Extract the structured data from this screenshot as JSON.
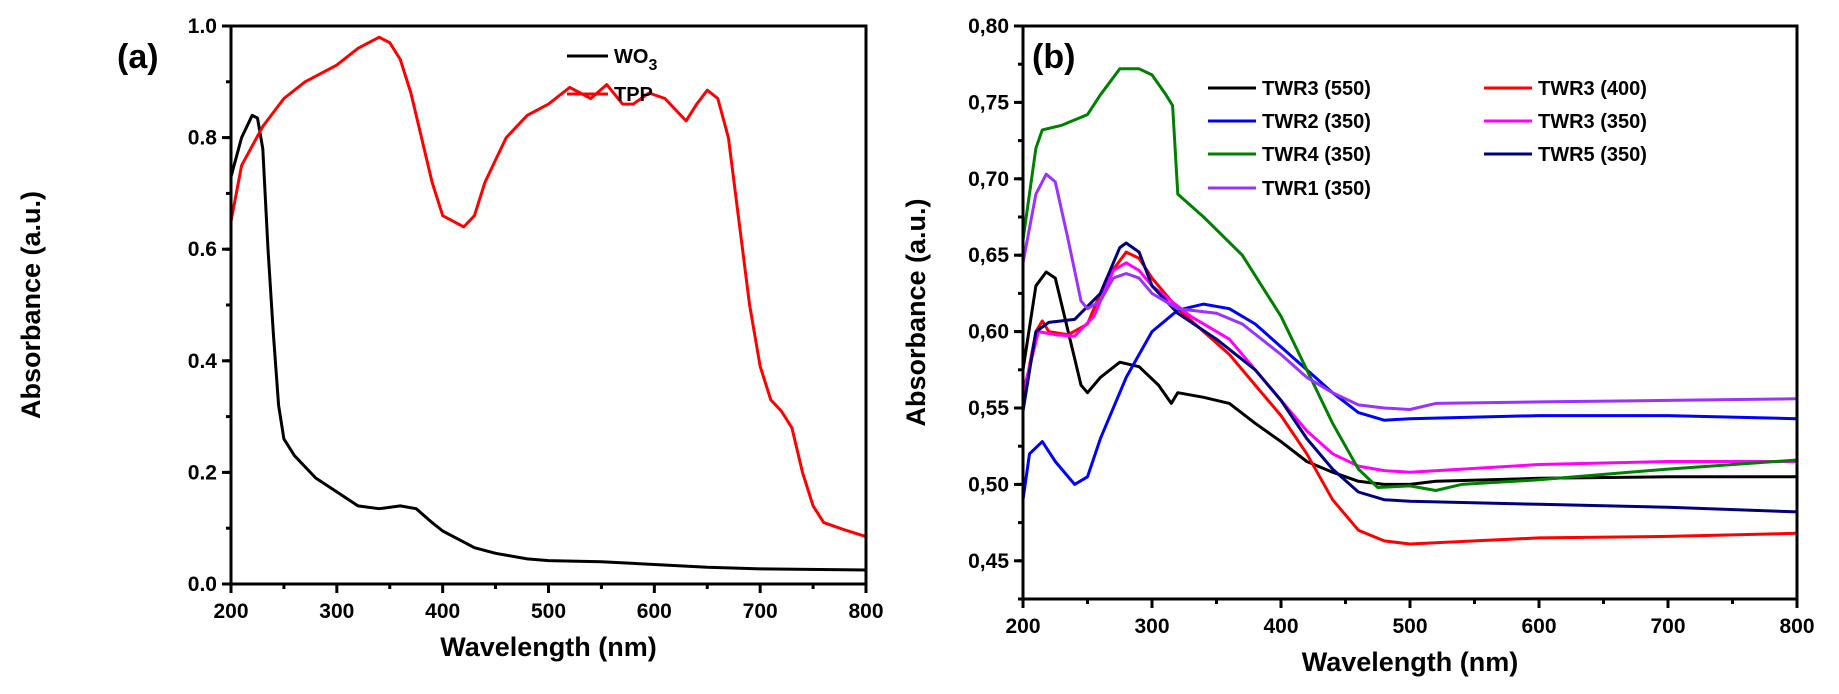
{
  "chart_data": [
    {
      "type": "line",
      "panel_label": "(a)",
      "xlabel": "Wavelength (nm)",
      "ylabel": "Absorbance (a.u.)",
      "xlim": [
        200,
        800
      ],
      "ylim": [
        0,
        1.0
      ],
      "x_ticks": [
        200,
        300,
        400,
        500,
        600,
        700,
        800
      ],
      "x_tick_labels": [
        "200",
        "300",
        "400",
        "500",
        "600",
        "700",
        "800"
      ],
      "y_ticks": [
        0,
        0.2,
        0.4,
        0.6,
        0.8,
        1.0
      ],
      "y_tick_labels": [
        "0.0",
        "0.2",
        "0.4",
        "0.6",
        "0.8",
        "1.0"
      ],
      "grid": false,
      "legend_placement": "top-right",
      "series": [
        {
          "name": "WO3",
          "name_main": "WO",
          "name_sub": "3",
          "color": "#000000",
          "x": [
            200,
            210,
            220,
            225,
            230,
            235,
            240,
            245,
            250,
            260,
            280,
            300,
            320,
            340,
            360,
            375,
            390,
            400,
            410,
            420,
            430,
            450,
            480,
            500,
            550,
            600,
            650,
            700,
            800
          ],
          "y": [
            0.73,
            0.8,
            0.84,
            0.835,
            0.78,
            0.6,
            0.45,
            0.32,
            0.26,
            0.23,
            0.19,
            0.165,
            0.14,
            0.135,
            0.14,
            0.135,
            0.11,
            0.095,
            0.085,
            0.075,
            0.065,
            0.055,
            0.045,
            0.042,
            0.04,
            0.035,
            0.03,
            0.027,
            0.025
          ]
        },
        {
          "name": "TPP",
          "color": "#ff0000",
          "x": [
            200,
            210,
            230,
            250,
            270,
            300,
            320,
            340,
            350,
            360,
            370,
            380,
            390,
            400,
            410,
            420,
            430,
            440,
            460,
            480,
            500,
            520,
            540,
            555,
            570,
            580,
            595,
            610,
            630,
            640,
            650,
            660,
            670,
            680,
            690,
            700,
            710,
            720,
            730,
            740,
            750,
            760,
            780,
            800
          ],
          "y": [
            0.65,
            0.75,
            0.82,
            0.87,
            0.9,
            0.93,
            0.96,
            0.98,
            0.97,
            0.94,
            0.88,
            0.8,
            0.72,
            0.66,
            0.65,
            0.64,
            0.66,
            0.72,
            0.8,
            0.84,
            0.86,
            0.89,
            0.87,
            0.895,
            0.86,
            0.86,
            0.88,
            0.87,
            0.83,
            0.86,
            0.885,
            0.87,
            0.8,
            0.65,
            0.5,
            0.39,
            0.33,
            0.31,
            0.28,
            0.2,
            0.14,
            0.11,
            0.097,
            0.085
          ]
        }
      ]
    },
    {
      "type": "line",
      "panel_label": "(b)",
      "xlabel": "Wavelength (nm)",
      "ylabel": "Absorbance (a.u.)",
      "xlim": [
        200,
        800
      ],
      "ylim": [
        0.425,
        0.8
      ],
      "x_ticks": [
        200,
        300,
        400,
        500,
        600,
        700,
        800
      ],
      "x_tick_labels": [
        "200",
        "300",
        "400",
        "500",
        "600",
        "700",
        "800"
      ],
      "y_ticks": [
        0.45,
        0.5,
        0.55,
        0.6,
        0.65,
        0.7,
        0.75,
        0.8
      ],
      "y_tick_labels": [
        "0,45",
        "0,50",
        "0,55",
        "0,60",
        "0,65",
        "0,70",
        "0,75",
        "0,80"
      ],
      "grid": false,
      "legend_placement": "top-right",
      "series": [
        {
          "name": "TWR3 (550)",
          "color": "#000000",
          "x": [
            200,
            210,
            218,
            225,
            235,
            245,
            250,
            260,
            275,
            290,
            305,
            315,
            320,
            340,
            360,
            380,
            400,
            420,
            440,
            460,
            480,
            500,
            520,
            600,
            700,
            800
          ],
          "y": [
            0.575,
            0.63,
            0.639,
            0.635,
            0.6,
            0.565,
            0.56,
            0.57,
            0.58,
            0.577,
            0.565,
            0.553,
            0.56,
            0.557,
            0.553,
            0.54,
            0.528,
            0.515,
            0.508,
            0.502,
            0.5,
            0.5,
            0.502,
            0.504,
            0.505,
            0.505
          ]
        },
        {
          "name": "TWR3 (400)",
          "color": "#ff0000",
          "x": [
            200,
            210,
            215,
            220,
            235,
            250,
            265,
            280,
            290,
            300,
            320,
            340,
            360,
            380,
            400,
            420,
            440,
            460,
            480,
            500,
            550,
            600,
            700,
            800
          ],
          "y": [
            0.555,
            0.6,
            0.607,
            0.6,
            0.598,
            0.605,
            0.635,
            0.652,
            0.648,
            0.635,
            0.615,
            0.6,
            0.585,
            0.565,
            0.545,
            0.52,
            0.49,
            0.47,
            0.463,
            0.461,
            0.463,
            0.465,
            0.466,
            0.468
          ]
        },
        {
          "name": "TWR2 (350)",
          "color": "#0000ff",
          "x": [
            200,
            205,
            215,
            225,
            240,
            250,
            260,
            280,
            300,
            320,
            340,
            360,
            380,
            400,
            420,
            440,
            460,
            480,
            500,
            600,
            700,
            800
          ],
          "y": [
            0.49,
            0.52,
            0.528,
            0.515,
            0.5,
            0.505,
            0.53,
            0.57,
            0.6,
            0.614,
            0.618,
            0.615,
            0.605,
            0.59,
            0.575,
            0.56,
            0.547,
            0.542,
            0.543,
            0.545,
            0.545,
            0.543
          ]
        },
        {
          "name": "TWR3 (350)",
          "color": "#ff00ff",
          "x": [
            200,
            212,
            225,
            240,
            255,
            270,
            280,
            290,
            300,
            330,
            360,
            380,
            400,
            420,
            440,
            460,
            480,
            500,
            600,
            700,
            800
          ],
          "y": [
            0.56,
            0.6,
            0.598,
            0.597,
            0.61,
            0.64,
            0.645,
            0.64,
            0.63,
            0.61,
            0.595,
            0.575,
            0.555,
            0.535,
            0.52,
            0.512,
            0.509,
            0.508,
            0.513,
            0.515,
            0.515
          ]
        },
        {
          "name": "TWR4 (350)",
          "color": "#008000",
          "x": [
            200,
            210,
            215,
            230,
            250,
            260,
            275,
            290,
            300,
            310,
            316,
            320,
            340,
            370,
            400,
            420,
            440,
            460,
            475,
            500,
            520,
            540,
            600,
            700,
            800
          ],
          "y": [
            0.66,
            0.72,
            0.732,
            0.735,
            0.742,
            0.755,
            0.772,
            0.772,
            0.768,
            0.756,
            0.748,
            0.69,
            0.675,
            0.65,
            0.61,
            0.575,
            0.54,
            0.51,
            0.498,
            0.499,
            0.496,
            0.5,
            0.503,
            0.51,
            0.516
          ]
        },
        {
          "name": "TWR5 (350)",
          "color": "#000080",
          "x": [
            200,
            210,
            220,
            240,
            260,
            275,
            280,
            290,
            300,
            320,
            350,
            380,
            400,
            420,
            440,
            460,
            480,
            500,
            600,
            700,
            800
          ],
          "y": [
            0.548,
            0.6,
            0.606,
            0.608,
            0.625,
            0.655,
            0.658,
            0.652,
            0.63,
            0.612,
            0.595,
            0.575,
            0.555,
            0.53,
            0.51,
            0.495,
            0.49,
            0.489,
            0.487,
            0.485,
            0.482
          ]
        },
        {
          "name": "TWR1 (350)",
          "color": "#9933ff",
          "x": [
            200,
            210,
            218,
            225,
            235,
            245,
            250,
            260,
            270,
            280,
            290,
            300,
            320,
            350,
            370,
            400,
            420,
            440,
            460,
            480,
            500,
            520,
            600,
            700,
            800
          ],
          "y": [
            0.645,
            0.69,
            0.703,
            0.698,
            0.66,
            0.62,
            0.615,
            0.62,
            0.635,
            0.638,
            0.635,
            0.625,
            0.615,
            0.612,
            0.605,
            0.585,
            0.57,
            0.56,
            0.552,
            0.55,
            0.549,
            0.553,
            0.554,
            0.555,
            0.556
          ]
        }
      ]
    }
  ]
}
